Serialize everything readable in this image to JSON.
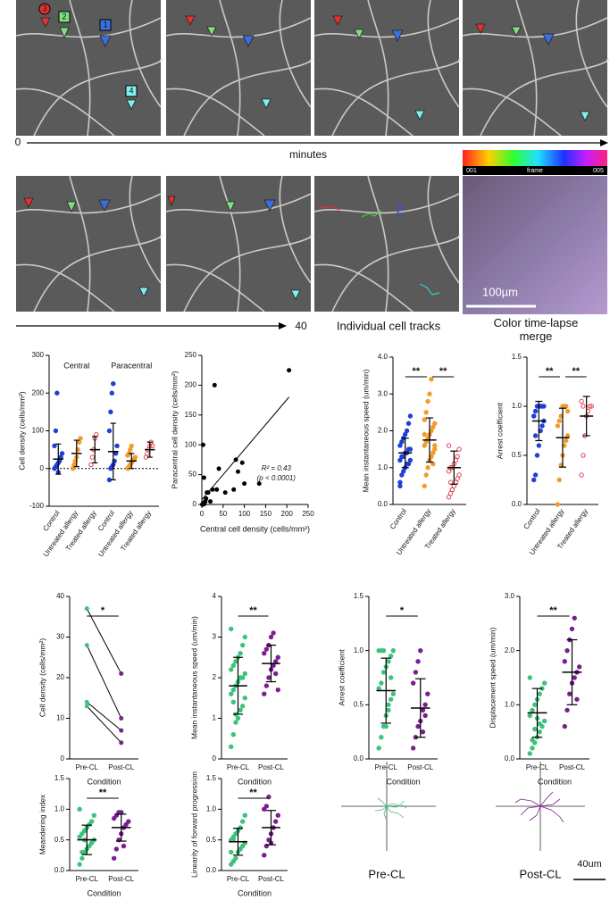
{
  "images": {
    "labels": [
      "3",
      "2",
      "1",
      "4"
    ],
    "scale_bar": "100µm",
    "timeline": {
      "start": "0",
      "label": "minutes",
      "end": "40"
    },
    "colorbar": {
      "start": "001",
      "label": "frame",
      "end": "005"
    },
    "captions": [
      "Individual cell tracks",
      "Color time-lapse merge"
    ]
  },
  "tracks": {
    "labels": [
      "Pre-CL",
      "Post-CL"
    ],
    "scale_bar": "40um"
  },
  "chart_data": [
    {
      "type": "dot",
      "ylabel": "Cell density (cells/mm²)",
      "group_labels": [
        "Central",
        "Paracentral"
      ],
      "zero_line": true,
      "categories": [
        "Control",
        "Untreated allergy",
        "Treated allergy",
        "Control",
        "Untreated allergy",
        "Treated allergy"
      ],
      "colors": [
        "#1f3fd8",
        "#f39a2b",
        "#e0404a",
        "#1f3fd8",
        "#f39a2b",
        "#e0404a"
      ],
      "hollow": [
        false,
        false,
        true,
        false,
        false,
        true
      ],
      "points": [
        [
          0,
          5,
          10,
          15,
          20,
          30,
          40,
          60,
          100,
          200,
          -10
        ],
        [
          0,
          10,
          20,
          30,
          50,
          70,
          80
        ],
        [
          10,
          30,
          50,
          80,
          90
        ],
        [
          -30,
          0,
          5,
          10,
          20,
          40,
          60,
          100,
          150,
          200,
          225
        ],
        [
          0,
          5,
          10,
          15,
          20,
          25,
          30,
          35,
          40,
          50,
          60
        ],
        [
          30,
          40,
          50,
          60,
          70,
          60
        ]
      ],
      "means": [
        25,
        40,
        50,
        45,
        20,
        50
      ],
      "sds": [
        40,
        35,
        35,
        75,
        20,
        20
      ],
      "ylim": [
        -100,
        300
      ],
      "yticks": [
        -100,
        0,
        100,
        200,
        300
      ]
    },
    {
      "type": "scatter",
      "ylabel": "Paracentral cell density (cells/mm²)",
      "xlabel": "Central cell density (cells/mm²)",
      "annotations": [
        "R² = 0.43",
        "(p < 0.0001)"
      ],
      "x": [
        1,
        2,
        3,
        4,
        5,
        6,
        8,
        10,
        12,
        5,
        3,
        15,
        20,
        25,
        30,
        35,
        40,
        55,
        75,
        80,
        85,
        95,
        100,
        135,
        205
      ],
      "y": [
        0,
        1,
        0,
        2,
        3,
        1,
        5,
        10,
        20,
        45,
        100,
        20,
        5,
        25,
        200,
        25,
        60,
        20,
        25,
        75,
        55,
        70,
        35,
        35,
        225
      ],
      "fit": {
        "x": [
          0,
          205
        ],
        "y": [
          8,
          180
        ]
      },
      "color": "#000000",
      "xlim": [
        0,
        250
      ],
      "xticks": [
        0,
        50,
        100,
        150,
        200,
        250
      ],
      "ylim": [
        0,
        250
      ],
      "yticks": [
        0,
        50,
        100,
        150,
        200,
        250
      ]
    },
    {
      "type": "dot",
      "ylabel": "Mean instantaneous speed (um/min)",
      "categories": [
        "Control",
        "Untreated allergy",
        "Treated allergy"
      ],
      "colors": [
        "#1f3fd8",
        "#f39a2b",
        "#e0404a"
      ],
      "hollow": [
        false,
        false,
        true
      ],
      "points": [
        [
          0.6,
          0.8,
          0.9,
          1.0,
          1.1,
          1.1,
          1.2,
          1.2,
          1.3,
          1.3,
          1.4,
          1.4,
          1.5,
          1.5,
          1.6,
          1.7,
          1.8,
          1.9,
          2.0,
          2.2,
          2.4,
          0.5
        ],
        [
          0.5,
          0.8,
          1.0,
          1.2,
          1.3,
          1.4,
          1.5,
          1.6,
          1.7,
          1.8,
          1.9,
          2.0,
          2.1,
          2.2,
          2.3,
          2.5,
          2.8,
          3.0,
          3.4,
          1.1,
          1.6,
          1.9
        ],
        [
          0.2,
          0.3,
          0.4,
          0.5,
          0.6,
          0.7,
          0.8,
          0.9,
          1.0,
          1.0,
          1.1,
          1.2,
          1.3,
          1.5,
          1.6,
          0.6,
          0.4
        ]
      ],
      "means": [
        1.4,
        1.75,
        1.0
      ],
      "sds": [
        0.4,
        0.6,
        0.45
      ],
      "comparisons": [
        {
          "between": [
            "Control",
            "Untreated allergy"
          ],
          "label": "**"
        },
        {
          "between": [
            "Untreated allergy",
            "Treated allergy"
          ],
          "label": "**"
        }
      ],
      "ylim": [
        0,
        4
      ],
      "yticks": [
        {
          "value": 0,
          "label": "0.0"
        },
        {
          "value": 1,
          "label": "1.0"
        },
        {
          "value": 2,
          "label": "2.0"
        },
        {
          "value": 3,
          "label": "3.0"
        },
        {
          "value": 4,
          "label": "4.0"
        }
      ]
    },
    {
      "type": "dot",
      "ylabel": "Arrest coefficient",
      "categories": [
        "Control",
        "Untreated allergy",
        "Treated allergy"
      ],
      "colors": [
        "#1f3fd8",
        "#f39a2b",
        "#e0404a"
      ],
      "hollow": [
        false,
        false,
        true
      ],
      "points": [
        [
          0.25,
          0.3,
          0.5,
          0.6,
          0.75,
          0.8,
          0.85,
          0.9,
          0.95,
          1.0,
          1.0,
          1.0,
          1.0,
          1.0,
          0.9,
          0.7
        ],
        [
          0.0,
          0.25,
          0.4,
          0.5,
          0.6,
          0.65,
          0.7,
          0.8,
          0.85,
          0.9,
          1.0,
          1.0,
          1.0,
          0.95
        ],
        [
          0.3,
          0.5,
          0.7,
          0.9,
          0.95,
          1.0,
          1.0,
          1.05,
          1.0
        ]
      ],
      "means": [
        0.85,
        0.68,
        0.9
      ],
      "sds": [
        0.2,
        0.3,
        0.2
      ],
      "comparisons": [
        {
          "between": [
            "Control",
            "Untreated allergy"
          ],
          "label": "**"
        },
        {
          "between": [
            "Untreated allergy",
            "Treated allergy"
          ],
          "label": "**"
        }
      ],
      "ylim": [
        0,
        1.5
      ],
      "yticks": [
        {
          "value": 0,
          "label": "0.0"
        },
        0.5,
        {
          "value": 1,
          "label": "1.0"
        },
        1.5
      ]
    },
    {
      "type": "paired",
      "ylabel": "Cell density (cells/mm²)",
      "xlabel": "Condition",
      "categories": [
        "Pre-CL",
        "Post-CL"
      ],
      "colors": [
        "#3cc27a",
        "#7b1f8f"
      ],
      "values": [
        [
          37,
          28,
          14,
          13
        ],
        [
          21,
          10,
          7,
          4
        ]
      ],
      "comparisons": [
        {
          "between": [
            "Pre-CL",
            "Post-CL"
          ],
          "label": "*"
        }
      ],
      "ylim": [
        0,
        40
      ],
      "yticks": [
        0,
        10,
        20,
        30,
        40
      ]
    },
    {
      "type": "dot",
      "ylabel": "Mean instantaneous speed (um/min)",
      "xlabel": "Condition",
      "categories": [
        "Pre-CL",
        "Post-CL"
      ],
      "colors": [
        "#3cc27a",
        "#7b1f8f"
      ],
      "hollow": [
        false,
        false
      ],
      "points": [
        [
          0.3,
          0.6,
          0.9,
          1.0,
          1.2,
          1.3,
          1.5,
          1.6,
          1.7,
          1.8,
          1.9,
          2.0,
          2.0,
          2.1,
          2.2,
          2.3,
          2.4,
          2.5,
          2.6,
          2.8,
          3.0,
          3.2,
          1.4,
          1.1
        ],
        [
          1.6,
          1.8,
          2.0,
          2.2,
          2.3,
          2.4,
          2.5,
          2.6,
          2.7,
          2.8,
          3.0,
          3.1,
          2.1,
          1.7
        ]
      ],
      "means": [
        1.8,
        2.35
      ],
      "sds": [
        0.7,
        0.45
      ],
      "comparisons": [
        {
          "between": [
            "Pre-CL",
            "Post-CL"
          ],
          "label": "**"
        }
      ],
      "ylim": [
        0,
        4
      ],
      "yticks": [
        0,
        1,
        2,
        3,
        4
      ]
    },
    {
      "type": "dot",
      "ylabel": "Arrest coefficient",
      "xlabel": "Condition",
      "categories": [
        "Pre-CL",
        "Post-CL"
      ],
      "colors": [
        "#3cc27a",
        "#7b1f8f"
      ],
      "hollow": [
        false,
        false
      ],
      "points": [
        [
          0.1,
          0.2,
          0.3,
          0.4,
          0.5,
          0.55,
          0.6,
          0.65,
          0.7,
          0.8,
          0.85,
          0.9,
          0.95,
          1.0,
          1.0,
          1.0,
          1.0,
          0.3,
          0.45,
          0.75
        ],
        [
          0.1,
          0.2,
          0.3,
          0.35,
          0.45,
          0.5,
          0.6,
          0.7,
          0.8,
          0.9,
          1.0,
          0.25,
          0.4
        ]
      ],
      "means": [
        0.63,
        0.47
      ],
      "sds": [
        0.3,
        0.27
      ],
      "comparisons": [
        {
          "between": [
            "Pre-CL",
            "Post-CL"
          ],
          "label": "*"
        }
      ],
      "ylim": [
        0,
        1.5
      ],
      "yticks": [
        {
          "value": 0,
          "label": "0.0"
        },
        0.5,
        {
          "value": 1,
          "label": "1.0"
        },
        1.5
      ]
    },
    {
      "type": "dot",
      "ylabel": "Displacement speed (um/min)",
      "xlabel": "Condition",
      "categories": [
        "Pre-CL",
        "Post-CL"
      ],
      "colors": [
        "#3cc27a",
        "#7b1f8f"
      ],
      "hollow": [
        false,
        false
      ],
      "points": [
        [
          0.1,
          0.2,
          0.3,
          0.4,
          0.5,
          0.6,
          0.7,
          0.8,
          0.9,
          1.0,
          1.1,
          1.2,
          1.3,
          1.4,
          1.5,
          0.35,
          0.55,
          0.75,
          0.65
        ],
        [
          0.6,
          0.9,
          1.2,
          1.4,
          1.5,
          1.6,
          1.7,
          1.8,
          2.0,
          2.2,
          2.4,
          2.6,
          1.1
        ]
      ],
      "means": [
        0.85,
        1.6
      ],
      "sds": [
        0.45,
        0.6
      ],
      "comparisons": [
        {
          "between": [
            "Pre-CL",
            "Post-CL"
          ],
          "label": "**"
        }
      ],
      "ylim": [
        0,
        3
      ],
      "yticks": [
        {
          "value": 0,
          "label": "0.0"
        },
        {
          "value": 1,
          "label": "1.0"
        },
        {
          "value": 2,
          "label": "2.0"
        },
        {
          "value": 3,
          "label": "3.0"
        }
      ]
    },
    {
      "type": "dot",
      "ylabel": "Meandering index",
      "xlabel": "Condition",
      "categories": [
        "Pre-CL",
        "Post-CL"
      ],
      "colors": [
        "#3cc27a",
        "#7b1f8f"
      ],
      "hollow": [
        false,
        false
      ],
      "points": [
        [
          0.1,
          0.2,
          0.3,
          0.35,
          0.4,
          0.45,
          0.5,
          0.55,
          0.6,
          0.65,
          0.7,
          0.75,
          0.8,
          0.9,
          1.0,
          0.3,
          0.5
        ],
        [
          0.2,
          0.35,
          0.5,
          0.6,
          0.7,
          0.75,
          0.8,
          0.85,
          0.9,
          0.95,
          0.95,
          0.4
        ]
      ],
      "means": [
        0.5,
        0.7
      ],
      "sds": [
        0.24,
        0.22
      ],
      "comparisons": [
        {
          "between": [
            "Pre-CL",
            "Post-CL"
          ],
          "label": "**"
        }
      ],
      "ylim": [
        0,
        1.5
      ],
      "yticks": [
        {
          "value": 0,
          "label": "0.0"
        },
        0.5,
        {
          "value": 1,
          "label": "1.0"
        },
        1.5
      ]
    },
    {
      "type": "dot",
      "ylabel": "Linearity of forward progression",
      "xlabel": "Condition",
      "categories": [
        "Pre-CL",
        "Post-CL"
      ],
      "colors": [
        "#3cc27a",
        "#7b1f8f"
      ],
      "hollow": [
        false,
        false
      ],
      "points": [
        [
          0.1,
          0.15,
          0.2,
          0.3,
          0.35,
          0.4,
          0.45,
          0.5,
          0.55,
          0.6,
          0.65,
          0.7,
          0.8,
          0.9,
          0.3,
          0.5
        ],
        [
          0.25,
          0.4,
          0.5,
          0.6,
          0.7,
          0.8,
          0.9,
          1.0,
          1.05,
          1.2,
          0.45
        ]
      ],
      "means": [
        0.47,
        0.7
      ],
      "sds": [
        0.22,
        0.28
      ],
      "comparisons": [
        {
          "between": [
            "Pre-CL",
            "Post-CL"
          ],
          "label": "**"
        }
      ],
      "ylim": [
        0,
        1.5
      ],
      "yticks": [
        {
          "value": 0,
          "label": "0.0"
        },
        0.5,
        {
          "value": 1,
          "label": "1.0"
        },
        1.5
      ]
    }
  ]
}
